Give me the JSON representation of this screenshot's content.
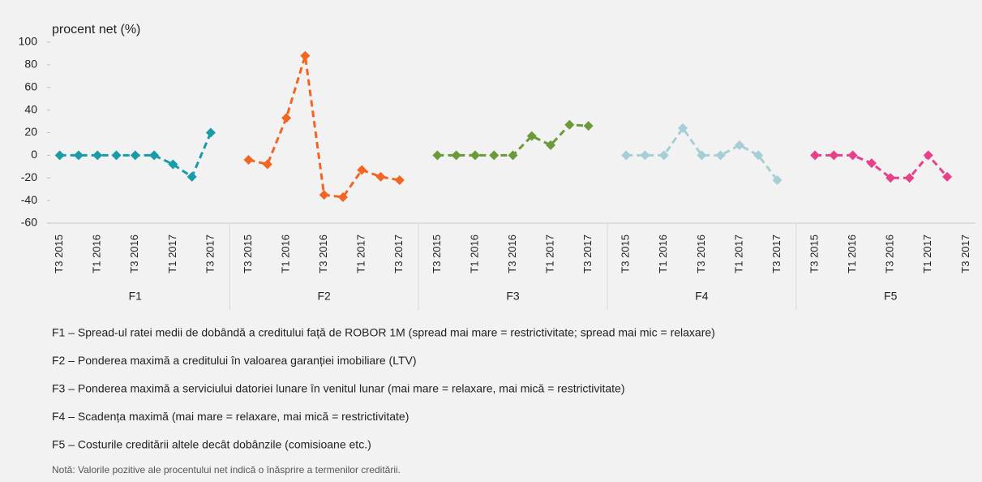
{
  "chart_data": {
    "type": "line",
    "y_label": "procent net (%)",
    "ylim": [
      -60,
      100
    ],
    "yticks": [
      -60,
      -40,
      -20,
      0,
      20,
      40,
      60,
      80,
      100
    ],
    "groups": [
      {
        "name": "F1",
        "color": "#1a9ba8",
        "categories": [
          "T3 2015",
          null,
          "T1 2016",
          null,
          "T3 2016",
          null,
          "T1 2017",
          null,
          "T3 2017"
        ],
        "values": [
          0,
          0,
          0,
          0,
          0,
          0,
          -8,
          -19,
          20
        ]
      },
      {
        "name": "F2",
        "color": "#f26522",
        "categories": [
          "T3 2015",
          null,
          "T1 2016",
          null,
          "T3 2016",
          null,
          "T1 2017",
          null,
          "T3 2017"
        ],
        "values": [
          -4,
          -8,
          33,
          88,
          -35,
          -37,
          -13,
          -19,
          -22
        ]
      },
      {
        "name": "F3",
        "color": "#6a9a3a",
        "categories": [
          "T3 2015",
          null,
          "T1 2016",
          null,
          "T3 2016",
          null,
          "T1 2017",
          null,
          "T3 2017"
        ],
        "values": [
          0,
          0,
          0,
          0,
          0,
          17,
          9,
          27,
          26
        ]
      },
      {
        "name": "F4",
        "color": "#a6cfd5",
        "categories": [
          "T3 2015",
          null,
          "T1 2016",
          null,
          "T3 2016",
          null,
          "T1 2017",
          null,
          "T3 2017"
        ],
        "values": [
          0,
          0,
          0,
          24,
          0,
          0,
          9,
          0,
          -22
        ]
      },
      {
        "name": "F5",
        "color": "#e8418a",
        "categories": [
          "T3 2015",
          null,
          "T1 2016",
          null,
          "T3 2016",
          null,
          "T1 2017",
          null,
          "T3 2017"
        ],
        "values": [
          0,
          0,
          0,
          -7,
          -20,
          -20,
          0,
          -19,
          null
        ]
      }
    ],
    "notes": [
      "F1 – Spread-ul ratei medii de dobândă  a creditului față de ROBOR 1M (spread mai mare = restrictivitate; spread mai mic = relaxare)",
      "F2 – Ponderea maximă a creditului în valoarea garanției imobiliare (LTV)",
      "F3 – Ponderea maximă a serviciului datoriei  lunare în venitul lunar  (mai mare = relaxare, mai mică = restrictivitate)",
      "F4 – Scadența maximă (mai mare = relaxare, mai mică = restrictivitate)",
      "F5 – Costurile creditării altele decât dobânzile  (comisioane  etc.)"
    ],
    "footnote": "Notă: Valorile pozitive ale procentului net indică o înăsprire a termenilor creditării."
  }
}
